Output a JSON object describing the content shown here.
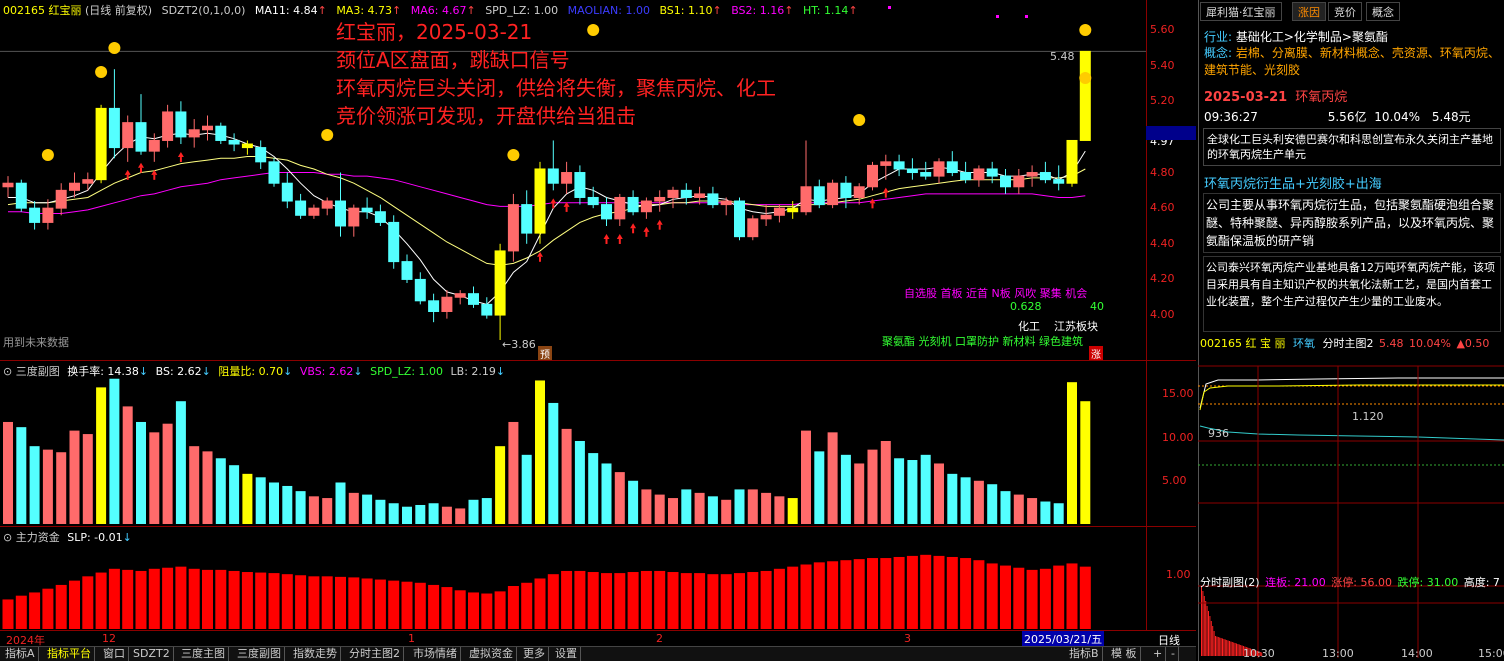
{
  "main_header": {
    "code": "002165 红宝丽",
    "period": "(日线 前复权)",
    "ind": "SDZT2(0,1,0,0)",
    "ma11": "MA11: 4.84",
    "ma3": "MA3: 4.73",
    "ma6": "MA6: 4.67",
    "spd": "SPD_LZ: 1.00",
    "maolian": "MAOLIAN: 1.00",
    "bs1": "BS1: 1.10",
    "bs2": "BS2: 1.16",
    "ht": "HT: 1.14"
  },
  "annotation": {
    "line1": "红宝丽，2025-03-21",
    "line2": "颈位A区盘面，跳缺口信号",
    "line3": "环氧丙烷巨头关闭，供给将失衡，聚焦丙烷、化工",
    "line4": "竞价领涨可发现，开盘供给当狙击"
  },
  "main_labels": {
    "future": "用到未来数据",
    "low_mark": "←3.86",
    "high_mark": "5.48",
    "yu": "预",
    "zhang": "涨",
    "tags_row1": "自选股 首板 近首 N板 风吹 聚集 机会",
    "val_left": "0.628",
    "val_right": "40",
    "sector1": "化工",
    "sector2": "江苏板块",
    "tags_row3": "聚氨酯 光刻机 口罩防护 新材料 绿色建筑"
  },
  "main_axis": [
    "5.60",
    "5.40",
    "5.20",
    "4.97",
    "4.80",
    "4.60",
    "4.40",
    "4.20",
    "4.00"
  ],
  "sub1_header": {
    "name": "三度副图",
    "hsl": "换手率: 14.38",
    "bs": "BS: 2.62",
    "zy": "阻量比: 0.70",
    "vbs": "VBS: 2.62",
    "spd": "SPD_LZ: 1.00",
    "lb": "LB: 2.19"
  },
  "sub1_axis": [
    "15.00",
    "10.00",
    "5.00"
  ],
  "sub2_header": {
    "name": "主力资金",
    "slp": "SLP: -0.01"
  },
  "sub2_axis": [
    "1.00"
  ],
  "date_axis": {
    "y2024": "2024年",
    "m12": "12",
    "m1": "1",
    "m2": "2",
    "m3": "3",
    "current": "2025/03/21/五",
    "day": "日线"
  },
  "bottom_tabs": [
    "指标A",
    "指标平台",
    "窗口",
    "SDZT2",
    "三度主图",
    "三度副图",
    "指数走势",
    "分时主图2",
    "市场情绪",
    "虚拟资金",
    "更多",
    "设置"
  ],
  "bottom_right": [
    "指标B",
    "模 板",
    "+",
    "-"
  ],
  "right_panel": {
    "tabs": [
      "犀利猫·红宝丽",
      "涨因",
      "竞价",
      "概念"
    ],
    "industry_label": "行业:",
    "industry": "基础化工>化学制品>聚氨酯",
    "concept_label": "概念:",
    "concept": "岩棉、分离膜、新材料概念、壳资源、环氧丙烷、建筑节能、光刻胶",
    "date": "2025-03-21",
    "reason": "环氧丙烷",
    "time": "09:36:27",
    "amount": "5.56亿",
    "pct": "10.04%",
    "price": "5.48元",
    "news": "全球化工巨头利安德巴赛尔和科思创宣布永久关闭主产基地的环氧丙烷生产单元",
    "theme": "环氧丙烷衍生品+光刻胶+出海",
    "desc1": "公司主要从事环氧丙烷衍生品，包括聚氨酯硬泡组合聚醚、特种聚醚、异丙醇胺系列产品，以及环氧丙烷、聚氨酯保温板的研产销",
    "desc2": "公司泰兴环氧丙烷产业基地具备12万吨环氧丙烷产能，该项目采用具有自主知识产权的共氧化法新工艺，是国内首套工业化装置，整个生产过程仅产生少量的工业废水。"
  },
  "intraday": {
    "header_code": "002165 红 宝 丽",
    "header_concept": "环氧",
    "header_name": "分时主图2",
    "header_price": "5.48",
    "header_pct": "10.04%",
    "header_chg": "▲0.50",
    "val_1120": "1.120",
    "val_936": "936",
    "sub_header_name": "分时副图(2)",
    "lianban": "连板: 21.00",
    "zhangting": "涨停: 56.00",
    "dieting": "跌停: 31.00",
    "gaodu": "高度: 7",
    "times": [
      "10:30",
      "13:00",
      "14:00",
      "15:00"
    ]
  },
  "chart_data": {
    "type": "candlestick",
    "candles": [
      [
        4.72,
        4.78,
        4.66,
        4.74
      ],
      [
        4.74,
        4.76,
        4.58,
        4.6
      ],
      [
        4.6,
        4.64,
        4.48,
        4.52
      ],
      [
        4.52,
        4.65,
        4.48,
        4.6
      ],
      [
        4.6,
        4.74,
        4.56,
        4.7
      ],
      [
        4.7,
        4.8,
        4.66,
        4.74
      ],
      [
        4.74,
        4.8,
        4.7,
        4.76
      ],
      [
        4.76,
        5.18,
        4.74,
        5.16
      ],
      [
        5.16,
        5.38,
        4.88,
        4.94
      ],
      [
        4.94,
        5.12,
        4.86,
        5.08
      ],
      [
        5.08,
        5.24,
        4.9,
        4.92
      ],
      [
        4.92,
        5.02,
        4.86,
        4.98
      ],
      [
        4.98,
        5.18,
        4.94,
        5.14
      ],
      [
        5.14,
        5.2,
        4.96,
        5.0
      ],
      [
        5.0,
        5.1,
        4.94,
        5.04
      ],
      [
        5.04,
        5.12,
        4.98,
        5.06
      ],
      [
        5.06,
        5.08,
        4.96,
        4.98
      ],
      [
        4.98,
        5.02,
        4.92,
        4.96
      ],
      [
        4.96,
        4.98,
        4.9,
        4.94
      ],
      [
        4.94,
        4.98,
        4.82,
        4.86
      ],
      [
        4.86,
        4.88,
        4.72,
        4.74
      ],
      [
        4.74,
        4.8,
        4.6,
        4.64
      ],
      [
        4.64,
        4.68,
        4.54,
        4.56
      ],
      [
        4.56,
        4.62,
        4.54,
        4.6
      ],
      [
        4.6,
        4.66,
        4.56,
        4.64
      ],
      [
        4.64,
        4.8,
        4.44,
        4.5
      ],
      [
        4.5,
        4.62,
        4.44,
        4.6
      ],
      [
        4.6,
        4.66,
        4.54,
        4.58
      ],
      [
        4.58,
        4.62,
        4.5,
        4.52
      ],
      [
        4.52,
        4.56,
        4.26,
        4.3
      ],
      [
        4.3,
        4.34,
        4.18,
        4.2
      ],
      [
        4.2,
        4.24,
        4.06,
        4.08
      ],
      [
        4.08,
        4.12,
        3.96,
        4.02
      ],
      [
        4.02,
        4.14,
        3.98,
        4.1
      ],
      [
        4.1,
        4.14,
        4.06,
        4.12
      ],
      [
        4.12,
        4.16,
        4.04,
        4.06
      ],
      [
        4.06,
        4.1,
        3.98,
        4.0
      ],
      [
        4.0,
        4.4,
        3.86,
        4.36
      ],
      [
        4.36,
        4.68,
        4.3,
        4.62
      ],
      [
        4.62,
        4.7,
        4.4,
        4.46
      ],
      [
        4.46,
        4.86,
        4.4,
        4.82
      ],
      [
        4.82,
        4.98,
        4.7,
        4.74
      ],
      [
        4.74,
        4.86,
        4.68,
        4.8
      ],
      [
        4.8,
        4.84,
        4.62,
        4.66
      ],
      [
        4.66,
        4.72,
        4.6,
        4.62
      ],
      [
        4.62,
        4.66,
        4.5,
        4.54
      ],
      [
        4.54,
        4.68,
        4.5,
        4.66
      ],
      [
        4.66,
        4.7,
        4.56,
        4.58
      ],
      [
        4.58,
        4.66,
        4.54,
        4.64
      ],
      [
        4.64,
        4.7,
        4.58,
        4.66
      ],
      [
        4.66,
        4.72,
        4.6,
        4.7
      ],
      [
        4.7,
        4.74,
        4.62,
        4.66
      ],
      [
        4.66,
        4.72,
        4.62,
        4.68
      ],
      [
        4.68,
        4.72,
        4.6,
        4.62
      ],
      [
        4.62,
        4.66,
        4.56,
        4.64
      ],
      [
        4.64,
        4.66,
        4.42,
        4.44
      ],
      [
        4.44,
        4.56,
        4.42,
        4.54
      ],
      [
        4.54,
        4.62,
        4.5,
        4.56
      ],
      [
        4.56,
        4.62,
        4.52,
        4.6
      ],
      [
        4.6,
        4.64,
        4.54,
        4.58
      ],
      [
        4.58,
        4.98,
        4.56,
        4.72
      ],
      [
        4.72,
        4.76,
        4.6,
        4.62
      ],
      [
        4.62,
        4.76,
        4.6,
        4.74
      ],
      [
        4.74,
        4.78,
        4.6,
        4.66
      ],
      [
        4.66,
        4.74,
        4.62,
        4.72
      ],
      [
        4.72,
        4.86,
        4.7,
        4.84
      ],
      [
        4.84,
        4.9,
        4.76,
        4.86
      ],
      [
        4.86,
        4.9,
        4.78,
        4.82
      ],
      [
        4.82,
        4.88,
        4.76,
        4.8
      ],
      [
        4.8,
        4.86,
        4.76,
        4.78
      ],
      [
        4.78,
        4.88,
        4.74,
        4.86
      ],
      [
        4.86,
        4.92,
        4.78,
        4.8
      ],
      [
        4.8,
        4.86,
        4.74,
        4.76
      ],
      [
        4.76,
        4.84,
        4.72,
        4.82
      ],
      [
        4.82,
        4.86,
        4.74,
        4.78
      ],
      [
        4.78,
        4.82,
        4.68,
        4.72
      ],
      [
        4.72,
        4.82,
        4.68,
        4.78
      ],
      [
        4.78,
        4.84,
        4.72,
        4.8
      ],
      [
        4.8,
        4.86,
        4.74,
        4.76
      ],
      [
        4.76,
        4.84,
        4.7,
        4.74
      ],
      [
        4.74,
        4.98,
        4.72,
        4.98
      ],
      [
        4.98,
        5.48,
        4.98,
        5.48
      ]
    ],
    "limit_up_index": [
      7,
      18,
      37,
      40,
      59,
      80,
      81
    ],
    "ma_short": [
      4.66,
      4.66,
      4.63,
      4.63,
      4.65,
      4.67,
      4.7,
      4.8,
      4.89,
      4.96,
      5.0,
      4.99,
      5.01,
      5.02,
      5.01,
      5.02,
      5.01,
      4.99,
      4.96,
      4.94,
      4.89,
      4.82,
      4.74,
      4.67,
      4.63,
      4.6,
      4.58,
      4.58,
      4.55,
      4.48,
      4.4,
      4.31,
      4.2,
      4.13,
      4.11,
      4.08,
      4.06,
      4.13,
      4.24,
      4.3,
      4.45,
      4.6,
      4.68,
      4.72,
      4.7,
      4.66,
      4.64,
      4.62,
      4.61,
      4.62,
      4.65,
      4.66,
      4.67,
      4.66,
      4.65,
      4.6,
      4.58,
      4.57,
      4.58,
      4.6,
      4.65,
      4.64,
      4.65,
      4.66,
      4.68,
      4.74,
      4.78,
      4.82,
      4.82,
      4.82,
      4.83,
      4.82,
      4.8,
      4.8,
      4.8,
      4.78,
      4.78,
      4.79,
      4.79,
      4.76,
      4.8,
      4.92
    ],
    "ma_long": [
      4.62,
      4.63,
      4.63,
      4.63,
      4.64,
      4.65,
      4.66,
      4.7,
      4.74,
      4.77,
      4.8,
      4.81,
      4.83,
      4.85,
      4.86,
      4.87,
      4.88,
      4.88,
      4.89,
      4.89,
      4.88,
      4.87,
      4.84,
      4.82,
      4.79,
      4.77,
      4.74,
      4.7,
      4.66,
      4.61,
      4.56,
      4.51,
      4.46,
      4.41,
      4.37,
      4.33,
      4.29,
      4.28,
      4.29,
      4.32,
      4.36,
      4.42,
      4.47,
      4.52,
      4.55,
      4.57,
      4.58,
      4.6,
      4.62,
      4.62,
      4.63,
      4.63,
      4.64,
      4.64,
      4.64,
      4.63,
      4.62,
      4.61,
      4.61,
      4.61,
      4.62,
      4.62,
      4.63,
      4.64,
      4.65,
      4.67,
      4.69,
      4.71,
      4.72,
      4.73,
      4.74,
      4.75,
      4.76,
      4.76,
      4.76,
      4.76,
      4.76,
      4.77,
      4.77,
      4.77,
      4.78,
      4.82
    ],
    "ma_mid": [
      4.58,
      4.58,
      4.57,
      4.57,
      4.57,
      4.58,
      4.59,
      4.61,
      4.63,
      4.65,
      4.67,
      4.68,
      4.7,
      4.72,
      4.73,
      4.74,
      4.76,
      4.77,
      4.78,
      4.79,
      4.8,
      4.8,
      4.8,
      4.8,
      4.79,
      4.79,
      4.78,
      4.78,
      4.77,
      4.76,
      4.74,
      4.72,
      4.7,
      4.68,
      4.66,
      4.64,
      4.62,
      4.61,
      4.61,
      4.61,
      4.62,
      4.63,
      4.63,
      4.63,
      4.63,
      4.63,
      4.63,
      4.63,
      4.63,
      4.63,
      4.63,
      4.63,
      4.63,
      4.63,
      4.63,
      4.62,
      4.62,
      4.62,
      4.62,
      4.62,
      4.63,
      4.63,
      4.63,
      4.63,
      4.63,
      4.64,
      4.65,
      4.66,
      4.67,
      4.68,
      4.68,
      4.68,
      4.68,
      4.68,
      4.68,
      4.68,
      4.68,
      4.68,
      4.67,
      4.66,
      4.66,
      4.67
    ],
    "turnover": [
      11.8,
      11.2,
      9.0,
      8.6,
      8.3,
      10.8,
      10.4,
      15.8,
      16.8,
      13.6,
      11.8,
      10.6,
      11.6,
      14.2,
      9.0,
      8.4,
      7.6,
      6.8,
      5.8,
      5.4,
      4.8,
      4.4,
      3.8,
      3.2,
      3.0,
      4.8,
      3.6,
      3.4,
      2.8,
      2.4,
      2.0,
      2.2,
      2.4,
      2.0,
      1.8,
      2.8,
      3.0,
      9.0,
      11.8,
      8.0,
      16.6,
      14.0,
      11.0,
      9.6,
      8.2,
      7.0,
      6.0,
      5.0,
      4.0,
      3.4,
      3.0,
      4.0,
      3.6,
      3.2,
      2.8,
      4.0,
      4.0,
      3.6,
      3.2,
      3.0,
      10.8,
      8.4,
      10.6,
      8.0,
      7.0,
      8.6,
      9.6,
      7.6,
      7.4,
      8.0,
      7.0,
      5.8,
      5.4,
      5.0,
      4.6,
      3.8,
      3.4,
      3.0,
      2.6,
      2.4,
      16.4,
      14.2
    ],
    "main_funds": [
      0.55,
      0.62,
      0.68,
      0.75,
      0.82,
      0.9,
      0.98,
      1.05,
      1.12,
      1.1,
      1.08,
      1.12,
      1.14,
      1.16,
      1.12,
      1.1,
      1.1,
      1.08,
      1.06,
      1.05,
      1.04,
      1.02,
      1.0,
      0.98,
      0.98,
      0.97,
      0.96,
      0.94,
      0.92,
      0.9,
      0.88,
      0.86,
      0.82,
      0.78,
      0.72,
      0.68,
      0.66,
      0.7,
      0.8,
      0.86,
      0.94,
      1.02,
      1.08,
      1.08,
      1.06,
      1.04,
      1.04,
      1.06,
      1.08,
      1.08,
      1.06,
      1.04,
      1.04,
      1.02,
      1.02,
      1.04,
      1.06,
      1.08,
      1.12,
      1.16,
      1.2,
      1.24,
      1.26,
      1.28,
      1.3,
      1.32,
      1.32,
      1.34,
      1.36,
      1.38,
      1.36,
      1.34,
      1.32,
      1.28,
      1.22,
      1.18,
      1.14,
      1.1,
      1.12,
      1.18,
      1.22,
      1.16
    ],
    "y_range_main": [
      3.86,
      5.6
    ],
    "y_range_sub1": [
      0,
      17
    ],
    "y_range_sub2": [
      0,
      1.6
    ]
  },
  "colors": {
    "up": "#ff6b6b",
    "down": "#54ffff",
    "limit": "#ffff00",
    "ma_short": "#ffffff",
    "ma_long": "#ffff80",
    "ma_mid": "#ff00ff",
    "funds": "#ff0000"
  }
}
